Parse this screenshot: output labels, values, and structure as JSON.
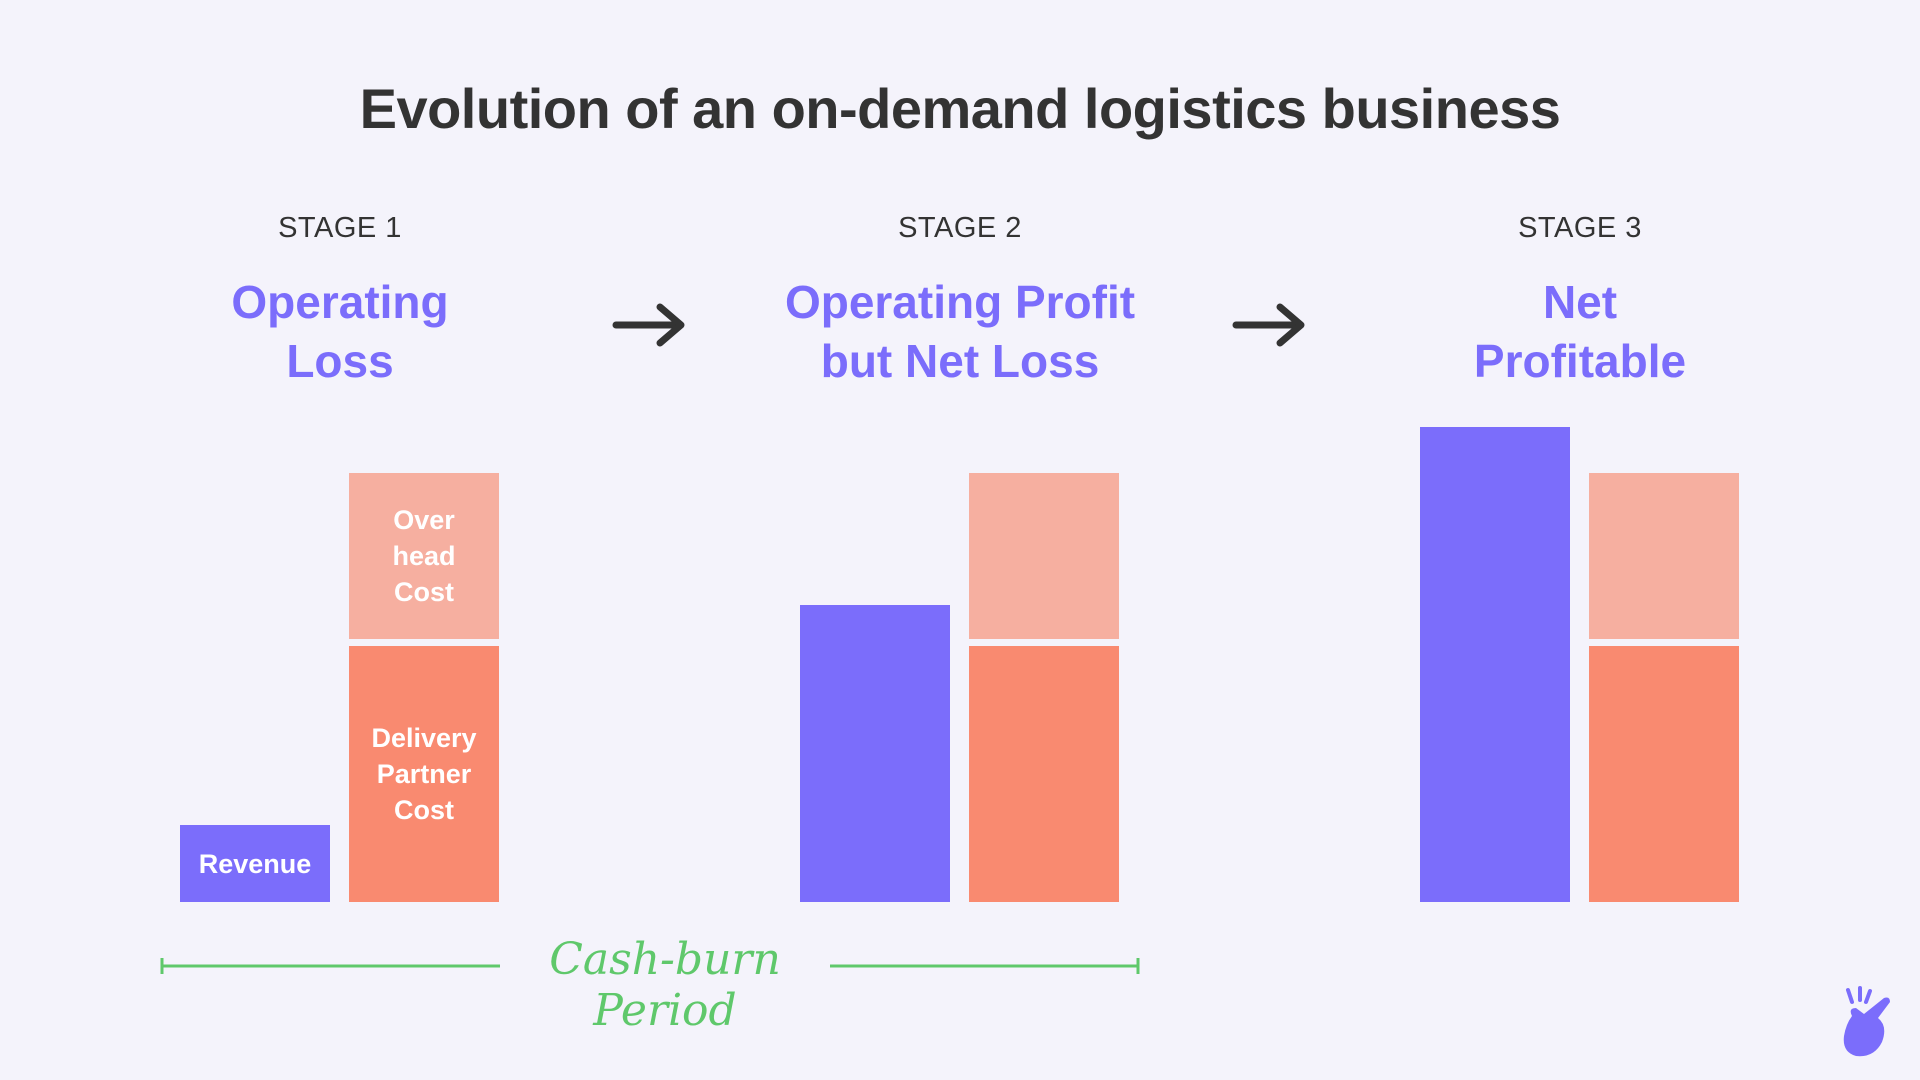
{
  "title": "Evolution of an on-demand logistics business",
  "stages": [
    {
      "label": "STAGE 1",
      "name": "Operating\nLoss"
    },
    {
      "label": "STAGE 2",
      "name": "Operating Profit\nbut Net Loss"
    },
    {
      "label": "STAGE 3",
      "name": "Net\nProfitable"
    }
  ],
  "bars": {
    "stage1": {
      "revenue": "Revenue",
      "overhead": "Over\nhead\nCost",
      "delivery": "Delivery\nPartner\nCost"
    }
  },
  "cash_burn": "Cash-burn Period",
  "colors": {
    "revenue": "#7b6dfb",
    "overhead": "#f6afa0",
    "delivery": "#f98a70",
    "stage_name": "#7b6dfb",
    "cash_burn": "#5fc86b",
    "background": "#f4f3fb"
  },
  "icons": {
    "arrow": "arrow-right-icon",
    "logo": "snapping-hand-logo"
  }
}
